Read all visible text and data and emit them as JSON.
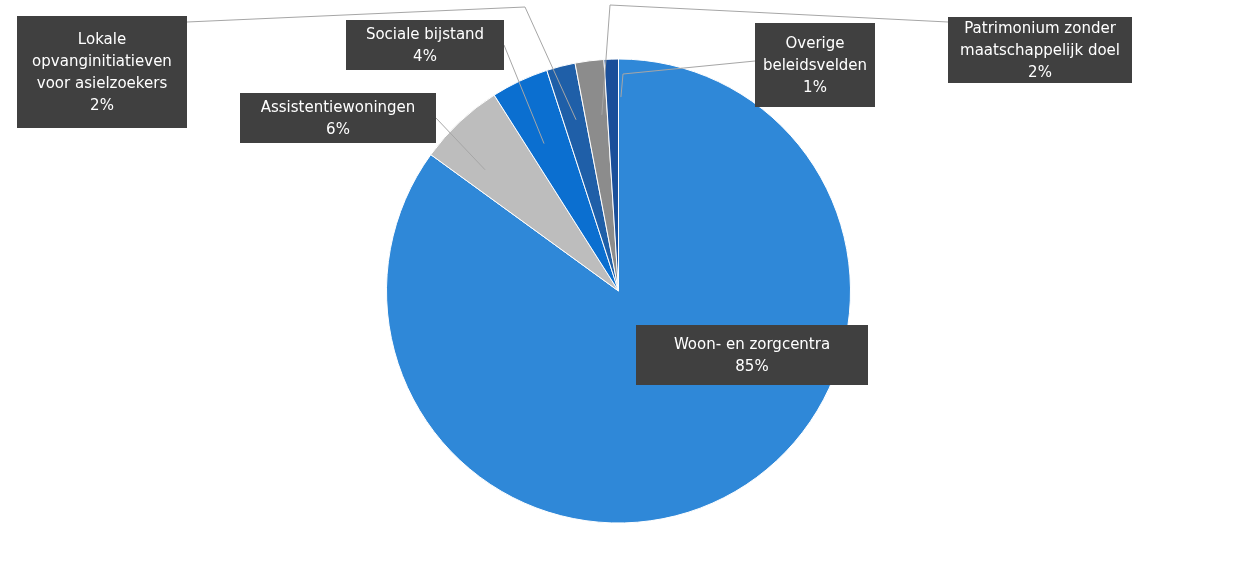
{
  "chart_data": {
    "type": "pie",
    "categories": [
      "Woon- en zorgcentra",
      "Assistentiewoningen",
      "Sociale bijstand",
      "Lokale opvanginitiatieven voor asielzoekers",
      "Patrimonium zonder maatschappelijk doel",
      "Overige beleidsvelden"
    ],
    "values": [
      85,
      6,
      4,
      2,
      2,
      1
    ],
    "colors": [
      "#2f88d8",
      "#bdbdbd",
      "#0b6fd0",
      "#1f5fa8",
      "#8c8c8c",
      "#1a4f9a"
    ],
    "value_labels": [
      "85%",
      "6%",
      "4%",
      "2%",
      "2%",
      "1%"
    ],
    "legend": false
  }
}
